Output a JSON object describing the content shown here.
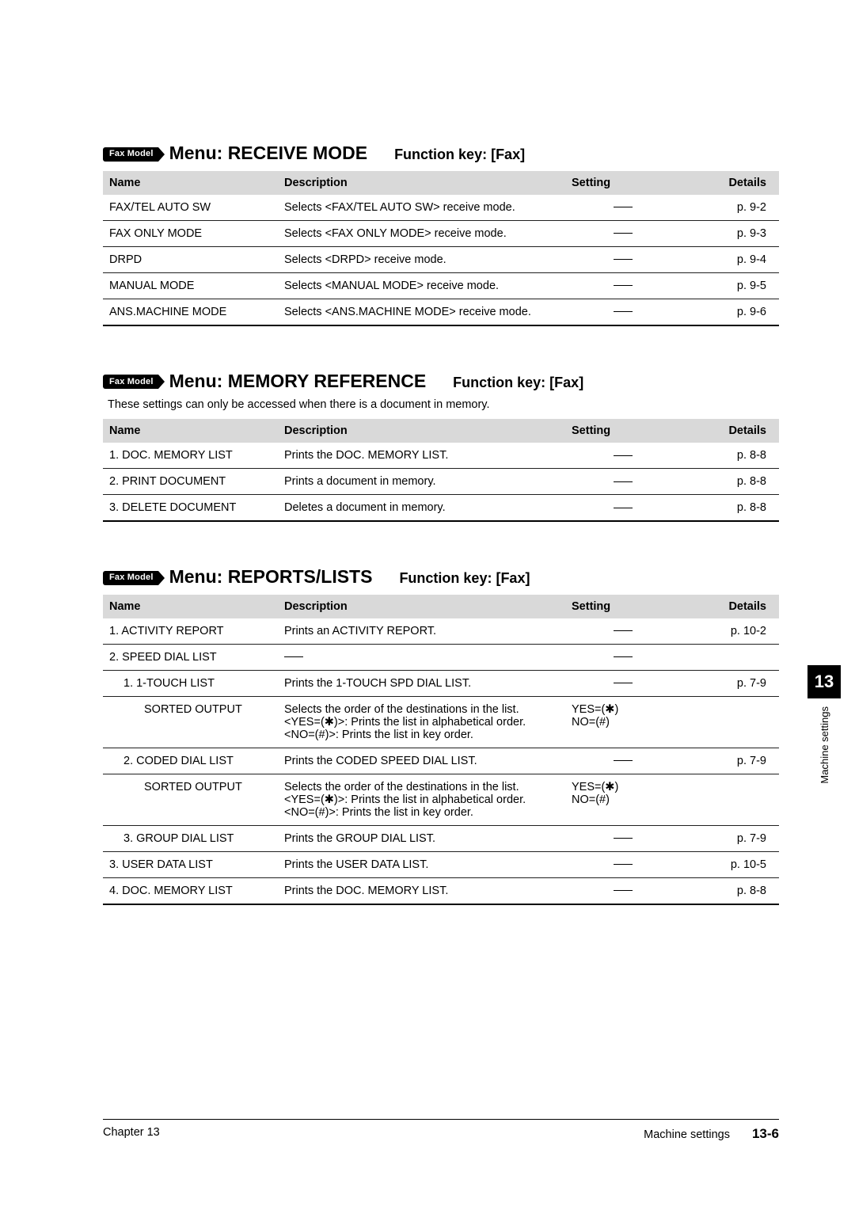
{
  "badge_text": "Fax Model",
  "sections": {
    "receive": {
      "menu_title": "Menu: RECEIVE MODE",
      "func_key": "Function key: [Fax]",
      "headers": {
        "name": "Name",
        "desc": "Description",
        "setting": "Setting",
        "details": "Details"
      },
      "rows": [
        {
          "name": "FAX/TEL AUTO SW",
          "desc": "Selects <FAX/TEL AUTO SW> receive mode.",
          "setting": "—",
          "details": "p. 9-2"
        },
        {
          "name": "FAX ONLY MODE",
          "desc": "Selects <FAX ONLY MODE> receive mode.",
          "setting": "—",
          "details": "p. 9-3"
        },
        {
          "name": "DRPD",
          "desc": "Selects <DRPD> receive mode.",
          "setting": "—",
          "details": "p. 9-4"
        },
        {
          "name": "MANUAL MODE",
          "desc": "Selects <MANUAL MODE> receive mode.",
          "setting": "—",
          "details": "p. 9-5"
        },
        {
          "name": "ANS.MACHINE MODE",
          "desc": "Selects <ANS.MACHINE MODE> receive mode.",
          "setting": "—",
          "details": "p. 9-6"
        }
      ]
    },
    "memory": {
      "menu_title": "Menu: MEMORY REFERENCE",
      "func_key": "Function key: [Fax]",
      "subnote": "These settings can only be accessed when there is a document in memory.",
      "headers": {
        "name": "Name",
        "desc": "Description",
        "setting": "Setting",
        "details": "Details"
      },
      "rows": [
        {
          "name": "1. DOC. MEMORY LIST",
          "desc": "Prints the DOC. MEMORY LIST.",
          "setting": "—",
          "details": "p. 8-8"
        },
        {
          "name": "2. PRINT DOCUMENT",
          "desc": "Prints a document in memory.",
          "setting": "—",
          "details": "p. 8-8"
        },
        {
          "name": "3. DELETE DOCUMENT",
          "desc": "Deletes a document in memory.",
          "setting": "—",
          "details": "p. 8-8"
        }
      ]
    },
    "reports": {
      "menu_title": "Menu: REPORTS/LISTS",
      "func_key": "Function key: [Fax]",
      "headers": {
        "name": "Name",
        "desc": "Description",
        "setting": "Setting",
        "details": "Details"
      },
      "rows": [
        {
          "indent": 0,
          "name": "1. ACTIVITY REPORT",
          "desc": "Prints an ACTIVITY REPORT.",
          "setting": "—",
          "details": "p. 10-2"
        },
        {
          "indent": 0,
          "name": "2. SPEED DIAL LIST",
          "desc": "—",
          "setting": "—",
          "details": ""
        },
        {
          "indent": 1,
          "name": "1. 1-TOUCH LIST",
          "desc": "Prints the 1-TOUCH SPD DIAL LIST.",
          "setting": "—",
          "details": "p. 7-9"
        },
        {
          "indent": 2,
          "name": "SORTED OUTPUT",
          "desc": "Selects the order of the destinations in the list.\n<YES=(✱)>: Prints the list in alphabetical order.\n<NO=(#)>: Prints the list in key order.",
          "setting": "YES=(✱)\nNO=(#)",
          "details": ""
        },
        {
          "indent": 1,
          "name": "2. CODED DIAL LIST",
          "desc": "Prints the CODED SPEED DIAL LIST.",
          "setting": "—",
          "details": "p. 7-9"
        },
        {
          "indent": 2,
          "name": "SORTED OUTPUT",
          "desc": "Selects the order of the destinations in the list.\n<YES=(✱)>: Prints the list in alphabetical order.\n<NO=(#)>: Prints the list in key order.",
          "setting": "YES=(✱)\nNO=(#)",
          "details": ""
        },
        {
          "indent": 1,
          "name": "3. GROUP DIAL LIST",
          "desc": "Prints the GROUP DIAL LIST.",
          "setting": "—",
          "details": "p. 7-9"
        },
        {
          "indent": 0,
          "name": "3. USER DATA LIST",
          "desc": "Prints the USER DATA LIST.",
          "setting": "—",
          "details": "p. 10-5"
        },
        {
          "indent": 0,
          "name": "4. DOC. MEMORY LIST",
          "desc": "Prints the DOC. MEMORY LIST.",
          "setting": "—",
          "details": "p. 8-8"
        }
      ]
    }
  },
  "side": {
    "number": "13",
    "label": "Machine settings"
  },
  "footer": {
    "chapter": "Chapter 13",
    "section": "Machine settings",
    "page": "13-6"
  },
  "colors": {
    "header_bg": "#d9d9d9",
    "text": "#000000",
    "background": "#ffffff"
  }
}
